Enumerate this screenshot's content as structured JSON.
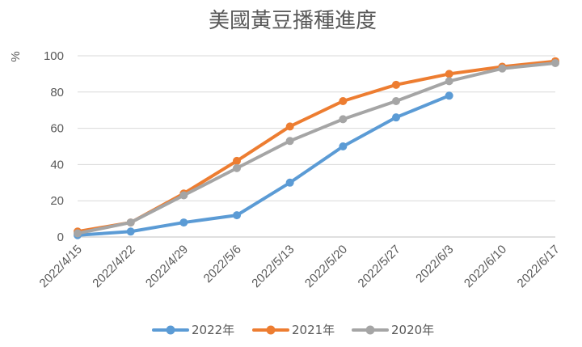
{
  "chart_data": {
    "type": "line",
    "title": "美國黃豆播種進度",
    "ylabel": "%",
    "xlabel": "",
    "categories": [
      "2022/4/15",
      "2022/4/22",
      "2022/4/29",
      "2022/5/6",
      "2022/5/13",
      "2022/5/20",
      "2022/5/27",
      "2022/6/3",
      "2022/6/10",
      "2022/6/17"
    ],
    "ylim": [
      0,
      100
    ],
    "yticks": [
      0,
      20,
      40,
      60,
      80,
      100
    ],
    "grid": true,
    "legend_position": "bottom",
    "series": [
      {
        "name": "2022年",
        "color": "#5b9bd5",
        "values": [
          1,
          3,
          8,
          12,
          30,
          50,
          66,
          78,
          null,
          null
        ]
      },
      {
        "name": "2021年",
        "color": "#ed7d31",
        "values": [
          3,
          8,
          24,
          42,
          61,
          75,
          84,
          90,
          94,
          97
        ]
      },
      {
        "name": "2020年",
        "color": "#a5a5a5",
        "values": [
          2,
          8,
          23,
          38,
          53,
          65,
          75,
          86,
          93,
          96
        ]
      }
    ]
  }
}
